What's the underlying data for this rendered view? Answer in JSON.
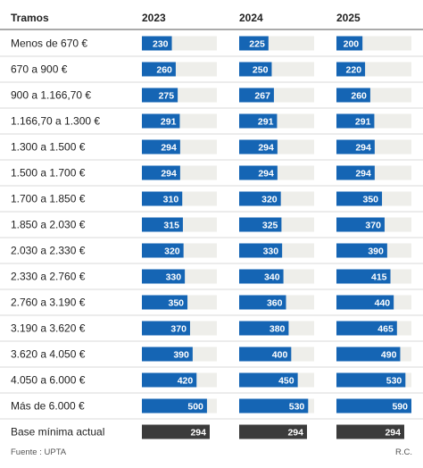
{
  "chart_data": {
    "type": "bar",
    "column_header": "Tramos",
    "years": [
      "2023",
      "2024",
      "2025"
    ],
    "xlim": [
      0,
      600
    ],
    "rows": [
      {
        "label": "Menos de 670 €",
        "values": [
          230,
          225,
          200
        ]
      },
      {
        "label": "670 a 900 €",
        "values": [
          260,
          250,
          220
        ]
      },
      {
        "label": "900 a 1.166,70 €",
        "values": [
          275,
          267,
          260
        ]
      },
      {
        "label": "1.166,70 a 1.300 €",
        "values": [
          291,
          291,
          291
        ]
      },
      {
        "label": "1.300 a 1.500 €",
        "values": [
          294,
          294,
          294
        ]
      },
      {
        "label": "1.500 a 1.700 €",
        "values": [
          294,
          294,
          294
        ]
      },
      {
        "label": "1.700 a 1.850 €",
        "values": [
          310,
          320,
          350
        ]
      },
      {
        "label": "1.850 a 2.030 €",
        "values": [
          315,
          325,
          370
        ]
      },
      {
        "label": "2.030 a 2.330 €",
        "values": [
          320,
          330,
          390
        ]
      },
      {
        "label": "2.330 a 2.760 €",
        "values": [
          330,
          340,
          415
        ]
      },
      {
        "label": "2.760 a 3.190 €",
        "values": [
          350,
          360,
          440
        ]
      },
      {
        "label": "3.190 a 3.620 €",
        "values": [
          370,
          380,
          465
        ]
      },
      {
        "label": "3.620 a 4.050 €",
        "values": [
          390,
          400,
          490
        ]
      },
      {
        "label": "4.050 a 6.000 €",
        "values": [
          420,
          450,
          530
        ]
      },
      {
        "label": "Más de 6.000 €",
        "values": [
          500,
          530,
          590
        ]
      },
      {
        "label": "Base mínima actual",
        "values": [
          294,
          294,
          294
        ],
        "highlight": true
      }
    ]
  },
  "source": "Fuente : UPTA",
  "credit": "R.C.",
  "colors": {
    "bar": "#1565b4",
    "bar_highlight": "#3b3b3b",
    "track": "#eeeeea",
    "separator": "#d9d9d9",
    "header_rule": "#555555"
  }
}
